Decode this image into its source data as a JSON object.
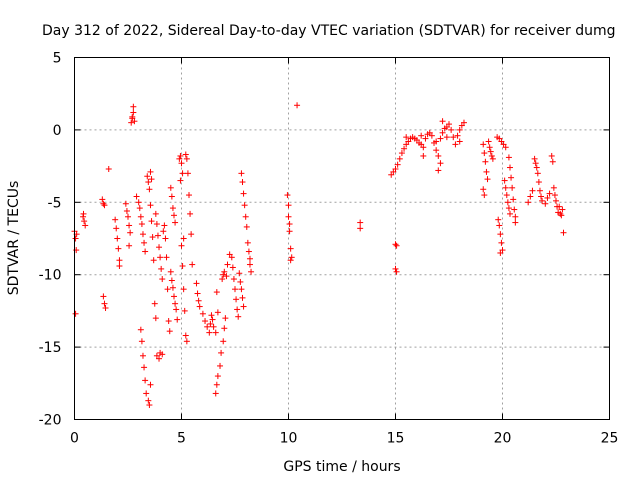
{
  "chart_data": {
    "type": "scatter",
    "title": "Day 312 of 2022, Sidereal Day-to-day VTEC variation (SDTVAR) for receiver dumg",
    "xlabel": "GPS time / hours",
    "ylabel": "SDTVAR / TECUs",
    "xlim": [
      0,
      25
    ],
    "ylim": [
      -20,
      5
    ],
    "xticks": [
      0,
      5,
      10,
      15,
      20,
      25
    ],
    "yticks": [
      5,
      0,
      -5,
      -10,
      -15,
      -20
    ],
    "grid": true,
    "marker": "plus",
    "series": [
      {
        "name": "SDTVAR",
        "color": "#ff0000",
        "points": [
          [
            0.0,
            -7.0
          ],
          [
            0.05,
            -7.5
          ],
          [
            0.08,
            -8.3
          ],
          [
            0.1,
            -7.2
          ],
          [
            0.05,
            -12.7
          ],
          [
            0.4,
            -6.0
          ],
          [
            0.45,
            -6.3
          ],
          [
            0.5,
            -6.6
          ],
          [
            0.42,
            -5.8
          ],
          [
            1.3,
            -4.8
          ],
          [
            1.35,
            -5.1
          ],
          [
            1.4,
            -5.2
          ],
          [
            1.35,
            -11.5
          ],
          [
            1.4,
            -12.0
          ],
          [
            1.45,
            -12.3
          ],
          [
            1.6,
            -2.7
          ],
          [
            1.9,
            -6.2
          ],
          [
            1.95,
            -6.8
          ],
          [
            2.0,
            -7.5
          ],
          [
            2.05,
            -8.2
          ],
          [
            2.1,
            -9.0
          ],
          [
            2.1,
            -9.4
          ],
          [
            2.4,
            -5.1
          ],
          [
            2.45,
            -5.6
          ],
          [
            2.5,
            -6.0
          ],
          [
            2.55,
            -6.6
          ],
          [
            2.6,
            -7.1
          ],
          [
            2.55,
            -8.0
          ],
          [
            2.65,
            0.5
          ],
          [
            2.7,
            0.8
          ],
          [
            2.75,
            1.6
          ],
          [
            2.7,
            0.9
          ],
          [
            2.8,
            0.6
          ],
          [
            2.75,
            1.2
          ],
          [
            2.9,
            -4.6
          ],
          [
            3.0,
            -5.0
          ],
          [
            3.05,
            -5.4
          ],
          [
            3.1,
            -6.0
          ],
          [
            3.15,
            -6.5
          ],
          [
            3.2,
            -7.2
          ],
          [
            3.25,
            -7.8
          ],
          [
            3.3,
            -8.4
          ],
          [
            3.1,
            -13.8
          ],
          [
            3.15,
            -14.6
          ],
          [
            3.2,
            -15.6
          ],
          [
            3.25,
            -16.4
          ],
          [
            3.3,
            -17.3
          ],
          [
            3.35,
            -18.2
          ],
          [
            3.45,
            -18.7
          ],
          [
            3.5,
            -19.0
          ],
          [
            3.55,
            -17.6
          ],
          [
            3.4,
            -3.2
          ],
          [
            3.45,
            -3.6
          ],
          [
            3.5,
            -4.1
          ],
          [
            3.55,
            -5.2
          ],
          [
            3.6,
            -6.3
          ],
          [
            3.65,
            -7.4
          ],
          [
            3.7,
            -9.0
          ],
          [
            3.55,
            -2.9
          ],
          [
            3.6,
            -3.4
          ],
          [
            3.75,
            -12.0
          ],
          [
            3.8,
            -13.0
          ],
          [
            3.85,
            -15.6
          ],
          [
            3.95,
            -15.8
          ],
          [
            4.0,
            -15.4
          ],
          [
            4.1,
            -15.5
          ],
          [
            3.8,
            -5.8
          ],
          [
            3.85,
            -6.5
          ],
          [
            3.9,
            -7.3
          ],
          [
            3.95,
            -8.1
          ],
          [
            4.0,
            -8.8
          ],
          [
            4.05,
            -9.6
          ],
          [
            4.1,
            -10.3
          ],
          [
            4.15,
            -7.0
          ],
          [
            4.2,
            -6.6
          ],
          [
            4.25,
            -7.5
          ],
          [
            4.3,
            -8.8
          ],
          [
            4.35,
            -11.0
          ],
          [
            4.4,
            -13.2
          ],
          [
            4.45,
            -13.9
          ],
          [
            4.5,
            -9.8
          ],
          [
            4.55,
            -10.4
          ],
          [
            4.6,
            -10.9
          ],
          [
            4.65,
            -11.5
          ],
          [
            4.7,
            -12.0
          ],
          [
            4.75,
            -12.4
          ],
          [
            4.8,
            -13.1
          ],
          [
            4.5,
            -4.0
          ],
          [
            4.55,
            -4.6
          ],
          [
            4.6,
            -5.4
          ],
          [
            4.65,
            -5.9
          ],
          [
            4.7,
            -6.4
          ],
          [
            4.9,
            -2.0
          ],
          [
            4.95,
            -1.8
          ],
          [
            5.0,
            -2.3
          ],
          [
            5.05,
            -3.0
          ],
          [
            4.95,
            -3.5
          ],
          [
            5.0,
            -8.0
          ],
          [
            5.05,
            -9.4
          ],
          [
            5.1,
            -11.0
          ],
          [
            5.15,
            -12.5
          ],
          [
            5.2,
            -14.2
          ],
          [
            5.25,
            -14.6
          ],
          [
            5.1,
            -7.5
          ],
          [
            5.2,
            -1.7
          ],
          [
            5.25,
            -2.0
          ],
          [
            5.3,
            -3.0
          ],
          [
            5.35,
            -4.5
          ],
          [
            5.4,
            -5.8
          ],
          [
            5.45,
            -7.2
          ],
          [
            5.5,
            -9.3
          ],
          [
            5.7,
            -10.6
          ],
          [
            5.75,
            -11.3
          ],
          [
            5.8,
            -11.8
          ],
          [
            5.85,
            -12.2
          ],
          [
            6.0,
            -12.7
          ],
          [
            6.1,
            -13.2
          ],
          [
            6.2,
            -13.6
          ],
          [
            6.3,
            -14.0
          ],
          [
            6.35,
            -13.4
          ],
          [
            6.4,
            -12.8
          ],
          [
            6.45,
            -13.1
          ],
          [
            6.5,
            -13.6
          ],
          [
            6.6,
            -14.0
          ],
          [
            6.65,
            -11.2
          ],
          [
            6.7,
            -12.6
          ],
          [
            6.6,
            -18.2
          ],
          [
            6.65,
            -17.6
          ],
          [
            6.7,
            -17.0
          ],
          [
            6.8,
            -16.3
          ],
          [
            6.85,
            -15.4
          ],
          [
            6.95,
            -14.6
          ],
          [
            7.0,
            -13.7
          ],
          [
            7.05,
            -13.0
          ],
          [
            6.9,
            -10.3
          ],
          [
            6.95,
            -10.0
          ],
          [
            7.0,
            -9.8
          ],
          [
            7.1,
            -10.1
          ],
          [
            7.15,
            -9.3
          ],
          [
            7.25,
            -8.6
          ],
          [
            7.35,
            -8.8
          ],
          [
            7.4,
            -9.5
          ],
          [
            7.45,
            -10.3
          ],
          [
            7.5,
            -11.0
          ],
          [
            7.55,
            -11.7
          ],
          [
            7.6,
            -12.4
          ],
          [
            7.65,
            -12.9
          ],
          [
            7.7,
            -9.9
          ],
          [
            7.75,
            -10.5
          ],
          [
            7.8,
            -11.0
          ],
          [
            7.85,
            -11.6
          ],
          [
            7.9,
            -12.2
          ],
          [
            7.8,
            -3.0
          ],
          [
            7.85,
            -3.6
          ],
          [
            7.9,
            -4.4
          ],
          [
            7.95,
            -5.2
          ],
          [
            8.0,
            -6.0
          ],
          [
            8.05,
            -6.7
          ],
          [
            8.1,
            -7.8
          ],
          [
            8.15,
            -8.4
          ],
          [
            8.2,
            -9.3
          ],
          [
            8.25,
            -9.8
          ],
          [
            8.2,
            -8.9
          ],
          [
            9.95,
            -4.5
          ],
          [
            10.0,
            -5.2
          ],
          [
            10.0,
            -6.0
          ],
          [
            10.05,
            -6.5
          ],
          [
            10.05,
            -7.0
          ],
          [
            10.1,
            -8.2
          ],
          [
            10.1,
            -9.0
          ],
          [
            10.15,
            -8.8
          ],
          [
            10.4,
            1.7
          ],
          [
            13.35,
            -6.4
          ],
          [
            13.35,
            -6.8
          ],
          [
            15.0,
            -7.9
          ],
          [
            15.05,
            -8.0
          ],
          [
            15.0,
            -9.6
          ],
          [
            15.05,
            -9.8
          ],
          [
            14.8,
            -3.1
          ],
          [
            14.9,
            -2.9
          ],
          [
            15.0,
            -2.7
          ],
          [
            15.1,
            -2.4
          ],
          [
            15.2,
            -2.0
          ],
          [
            15.3,
            -1.6
          ],
          [
            15.4,
            -1.3
          ],
          [
            15.5,
            -1.0
          ],
          [
            15.6,
            -0.8
          ],
          [
            15.7,
            -0.6
          ],
          [
            15.8,
            -0.5
          ],
          [
            15.9,
            -0.6
          ],
          [
            16.0,
            -0.7
          ],
          [
            16.1,
            -0.9
          ],
          [
            16.2,
            -1.0
          ],
          [
            16.3,
            -1.2
          ],
          [
            16.4,
            -0.6
          ],
          [
            16.5,
            -0.3
          ],
          [
            16.6,
            -0.2
          ],
          [
            16.7,
            -0.4
          ],
          [
            16.8,
            -0.9
          ],
          [
            16.9,
            -1.4
          ],
          [
            17.0,
            -1.8
          ],
          [
            17.1,
            -0.6
          ],
          [
            17.2,
            -0.2
          ],
          [
            17.3,
            0.1
          ],
          [
            17.4,
            0.2
          ],
          [
            17.5,
            0.4
          ],
          [
            17.6,
            0.0
          ],
          [
            17.7,
            -0.5
          ],
          [
            17.8,
            -1.0
          ],
          [
            17.9,
            -0.4
          ],
          [
            18.0,
            0.0
          ],
          [
            18.1,
            0.3
          ],
          [
            18.2,
            0.5
          ],
          [
            15.5,
            -0.5
          ],
          [
            16.2,
            -0.4
          ],
          [
            16.9,
            -0.8
          ],
          [
            17.2,
            0.6
          ],
          [
            17.4,
            -0.5
          ],
          [
            18.0,
            -0.8
          ],
          [
            17.0,
            -2.8
          ],
          [
            17.1,
            -2.3
          ],
          [
            16.3,
            -1.8
          ],
          [
            19.1,
            -1.0
          ],
          [
            19.15,
            -1.6
          ],
          [
            19.2,
            -2.2
          ],
          [
            19.25,
            -2.9
          ],
          [
            19.3,
            -3.4
          ],
          [
            19.1,
            -4.1
          ],
          [
            19.15,
            -4.5
          ],
          [
            19.35,
            -0.8
          ],
          [
            19.4,
            -1.2
          ],
          [
            19.45,
            -1.5
          ],
          [
            19.5,
            -1.8
          ],
          [
            19.55,
            -2.0
          ],
          [
            19.75,
            -0.5
          ],
          [
            19.85,
            -0.6
          ],
          [
            19.95,
            -0.8
          ],
          [
            20.05,
            -1.0
          ],
          [
            20.15,
            -1.2
          ],
          [
            19.8,
            -6.2
          ],
          [
            19.85,
            -6.6
          ],
          [
            19.9,
            -7.2
          ],
          [
            19.95,
            -7.8
          ],
          [
            20.0,
            -8.3
          ],
          [
            19.9,
            -8.5
          ],
          [
            20.1,
            -3.5
          ],
          [
            20.15,
            -4.0
          ],
          [
            20.2,
            -4.5
          ],
          [
            20.25,
            -5.0
          ],
          [
            20.3,
            -5.4
          ],
          [
            20.35,
            -5.8
          ],
          [
            20.3,
            -1.9
          ],
          [
            20.35,
            -2.6
          ],
          [
            20.4,
            -3.3
          ],
          [
            20.45,
            -4.0
          ],
          [
            20.5,
            -4.8
          ],
          [
            20.55,
            -5.5
          ],
          [
            20.6,
            -6.0
          ],
          [
            20.6,
            -6.4
          ],
          [
            21.2,
            -5.0
          ],
          [
            21.3,
            -4.6
          ],
          [
            21.4,
            -4.2
          ],
          [
            21.5,
            -2.0
          ],
          [
            21.55,
            -2.3
          ],
          [
            21.6,
            -2.6
          ],
          [
            21.65,
            -3.0
          ],
          [
            21.7,
            -3.6
          ],
          [
            21.75,
            -4.2
          ],
          [
            21.8,
            -4.6
          ],
          [
            21.85,
            -4.9
          ],
          [
            22.0,
            -5.1
          ],
          [
            22.1,
            -4.7
          ],
          [
            22.2,
            -4.4
          ],
          [
            22.3,
            -1.8
          ],
          [
            22.35,
            -2.2
          ],
          [
            22.4,
            -4.0
          ],
          [
            22.45,
            -4.5
          ],
          [
            22.5,
            -4.9
          ],
          [
            22.55,
            -5.3
          ],
          [
            22.6,
            -5.7
          ],
          [
            22.65,
            -5.3
          ],
          [
            22.7,
            -5.8
          ],
          [
            22.75,
            -5.9
          ],
          [
            22.8,
            -5.5
          ],
          [
            22.85,
            -7.1
          ]
        ]
      }
    ]
  }
}
